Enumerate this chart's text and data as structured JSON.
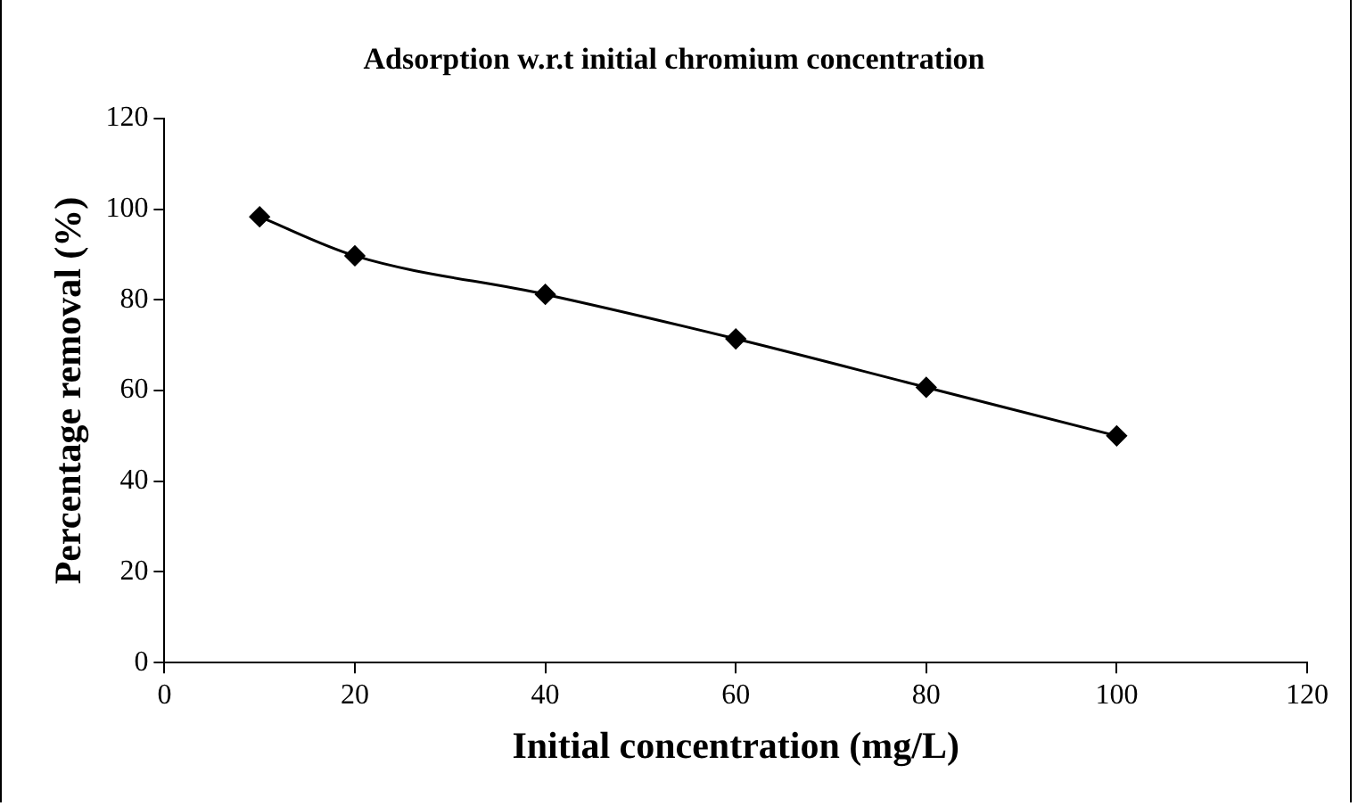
{
  "chart_data": {
    "type": "line",
    "title": "Adsorption w.r.t initial chromium concentration",
    "xlabel": "Initial concentration (mg/L)",
    "ylabel": "Percentage removal (%)",
    "x": [
      10,
      20,
      40,
      60,
      80,
      100
    ],
    "series": [
      {
        "color": "#000000",
        "values": [
          98.3,
          89.7,
          81.2,
          71.4,
          60.7,
          50
        ]
      }
    ],
    "xlim": [
      0,
      120
    ],
    "xticks": [
      0,
      20,
      40,
      60,
      80,
      100,
      120
    ],
    "ylim": [
      0,
      120
    ],
    "yticks": [
      0,
      20,
      40,
      60,
      80,
      100,
      120
    ],
    "grid": false,
    "legend": false,
    "marker": "diamond",
    "line_style": "solid"
  }
}
